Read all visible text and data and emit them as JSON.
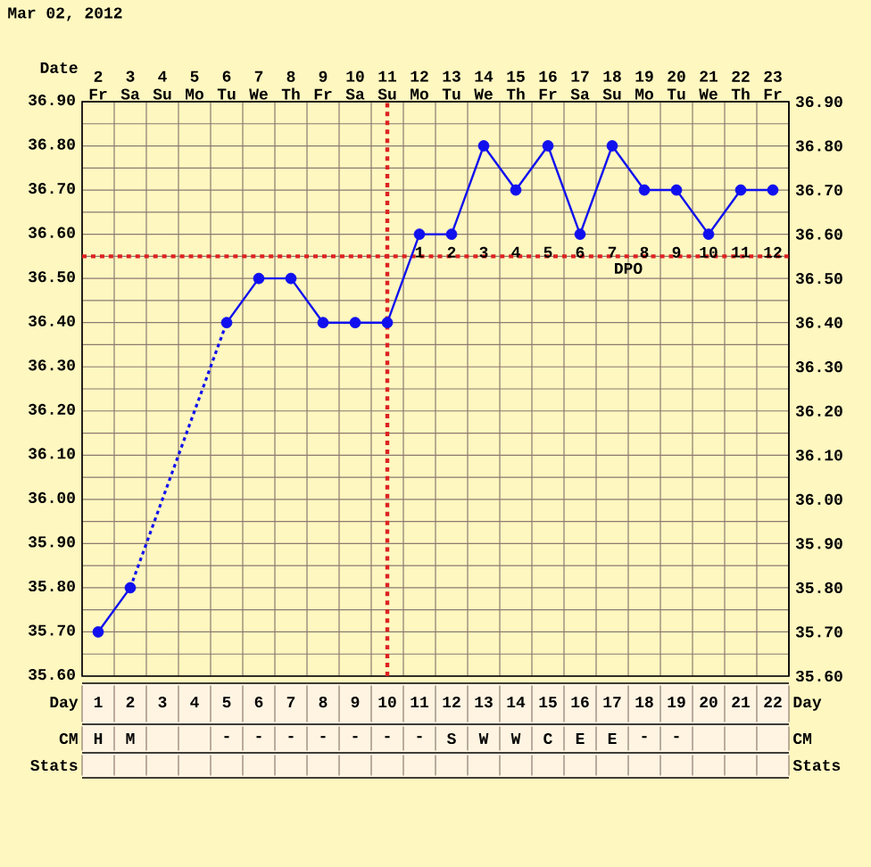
{
  "chart_data": {
    "type": "line",
    "title": "Mar 02, 2012",
    "xlabel": "Day",
    "x2label": "Date",
    "categories": [
      "1",
      "2",
      "3",
      "4",
      "5",
      "6",
      "7",
      "8",
      "9",
      "10",
      "11",
      "12",
      "13",
      "14",
      "15",
      "16",
      "17",
      "18",
      "19",
      "20",
      "21",
      "22"
    ],
    "series": [
      {
        "color": "#1010ee",
        "values": [
          35.7,
          35.8,
          null,
          null,
          36.4,
          36.5,
          36.5,
          36.4,
          36.4,
          36.4,
          36.6,
          36.6,
          36.8,
          36.7,
          36.8,
          36.6,
          36.8,
          36.7,
          36.7,
          36.6,
          36.7,
          36.7
        ]
      }
    ],
    "x2lim": [
      1.5,
      23.5
    ],
    "x2ticks": [
      {
        "value": 2,
        "label": "2 Fr"
      },
      {
        "value": 3,
        "label": "3 Sa"
      },
      {
        "value": 4,
        "label": "4 Su"
      },
      {
        "value": 5,
        "label": "5 Mo"
      },
      {
        "value": 6,
        "label": "6 Tu"
      },
      {
        "value": 7,
        "label": "7 We"
      },
      {
        "value": 8,
        "label": "8 Th"
      },
      {
        "value": 9,
        "label": "9 Fr"
      },
      {
        "value": 10,
        "label": "10 Sa"
      },
      {
        "value": 11,
        "label": "11 Su"
      },
      {
        "value": 12,
        "label": "12 Mo"
      },
      {
        "value": 13,
        "label": "13 Tu"
      },
      {
        "value": 14,
        "label": "14 We"
      },
      {
        "value": 15,
        "label": "15 Th"
      },
      {
        "value": 16,
        "label": "16 Fr"
      },
      {
        "value": 17,
        "label": "17 Sa"
      },
      {
        "value": 18,
        "label": "18 Su"
      },
      {
        "value": 19,
        "label": "19 Mo"
      },
      {
        "value": 20,
        "label": "20 Tu"
      },
      {
        "value": 21,
        "label": "21 We"
      },
      {
        "value": 22,
        "label": "22 Th"
      },
      {
        "value": 23,
        "label": "23 Fr"
      }
    ],
    "ylim": [
      35.6,
      36.9
    ],
    "yticks": [
      {
        "value": 35.6,
        "label": "35.60"
      },
      {
        "value": 35.7,
        "label": "35.70"
      },
      {
        "value": 35.8,
        "label": "35.80"
      },
      {
        "value": 35.9,
        "label": "35.90"
      },
      {
        "value": 36.0,
        "label": "36.00"
      },
      {
        "value": 36.1,
        "label": "36.10"
      },
      {
        "value": 36.2,
        "label": "36.20"
      },
      {
        "value": 36.3,
        "label": "36.30"
      },
      {
        "value": 36.4,
        "label": "36.40"
      },
      {
        "value": 36.5,
        "label": "36.50"
      },
      {
        "value": 36.6,
        "label": "36.60"
      },
      {
        "value": 36.7,
        "label": "36.70"
      },
      {
        "value": 36.8,
        "label": "36.80"
      },
      {
        "value": 36.9,
        "label": "36.90"
      }
    ],
    "y2lim": [
      35.6,
      36.9
    ],
    "y2ticks": [
      {
        "value": 35.6,
        "label": "35.60"
      },
      {
        "value": 35.7,
        "label": "35.70"
      },
      {
        "value": 35.8,
        "label": "35.80"
      },
      {
        "value": 35.9,
        "label": "35.90"
      },
      {
        "value": 36.0,
        "label": "36.00"
      },
      {
        "value": 36.1,
        "label": "36.10"
      },
      {
        "value": 36.2,
        "label": "36.20"
      },
      {
        "value": 36.3,
        "label": "36.30"
      },
      {
        "value": 36.4,
        "label": "36.40"
      },
      {
        "value": 36.5,
        "label": "36.50"
      },
      {
        "value": 36.6,
        "label": "36.60"
      },
      {
        "value": 36.7,
        "label": "36.70"
      },
      {
        "value": 36.8,
        "label": "36.80"
      },
      {
        "value": 36.9,
        "label": "36.90"
      }
    ],
    "grid": true,
    "marker": "circle",
    "line_style": "solid",
    "ref_lines": [
      {
        "axis": "x",
        "value": "10",
        "color": "#dd2222",
        "line_style": "dotted"
      },
      {
        "axis": "y",
        "value": 36.55,
        "color": "#dd2222",
        "line_style": "dotted"
      }
    ],
    "annotations": [
      "CM",
      "Stats",
      "H",
      "M",
      null,
      null,
      "-",
      "-",
      "-",
      "-",
      "-",
      "-",
      "-",
      "S",
      "W",
      "W",
      "C",
      "E",
      "E",
      "-",
      "-",
      null,
      null,
      null,
      "DPO",
      "1",
      "2",
      "3",
      "4",
      "5",
      "6",
      "7",
      "8",
      "9",
      "10",
      "11",
      "12"
    ]
  }
}
